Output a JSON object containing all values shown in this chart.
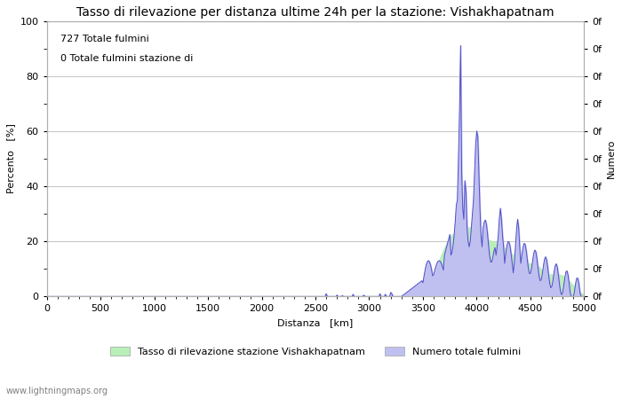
{
  "title": "Tasso di rilevazione per distanza ultime 24h per la stazione: Vishakhapatnam",
  "xlabel": "Distanza   [km]",
  "ylabel_left": "Percento   [%]",
  "ylabel_right": "Numero",
  "text_line1": "727 Totale fulmini",
  "text_line2": "0 Totale fulmini stazione di",
  "xlim": [
    0,
    5000
  ],
  "ylim": [
    0,
    100
  ],
  "xticks": [
    0,
    500,
    1000,
    1500,
    2000,
    2500,
    3000,
    3500,
    4000,
    4500,
    5000
  ],
  "yticks_left": [
    0,
    20,
    40,
    60,
    80,
    100
  ],
  "yticks_minor_left": [
    10,
    30,
    50,
    70,
    90
  ],
  "right_axis_ticks": [
    0,
    10,
    20,
    30,
    40,
    50,
    60,
    70,
    80,
    90,
    100
  ],
  "right_axis_labels": [
    "0f",
    "0f",
    "0f",
    "0f",
    "0f",
    "0f",
    "0f",
    "0f",
    "0f",
    "0f",
    "0f"
  ],
  "background_color": "#ffffff",
  "grid_color": "#c8c8c8",
  "fill_green_color": "#b8f0b8",
  "fill_blue_color": "#c0c0f0",
  "line_color": "#5050c8",
  "legend_label_green": "Tasso di rilevazione stazione Vishakhapatnam",
  "legend_label_blue": "Numero totale fulmini",
  "watermark": "www.lightningmaps.org",
  "title_fontsize": 10,
  "label_fontsize": 8,
  "tick_fontsize": 8,
  "annotation_fontsize": 8,
  "legend_fontsize": 8
}
